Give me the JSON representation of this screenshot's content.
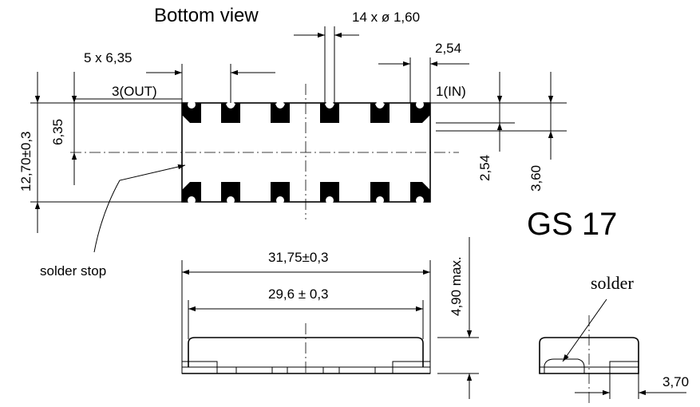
{
  "title": "Bottom view",
  "part_name": "GS 17",
  "labels": {
    "hole_note": "14 x ø 1,60",
    "pitch_count": "5 x 6,35",
    "pin_spacing": "2,54",
    "out_pin": "3(OUT)",
    "in_pin": "1(IN)",
    "height_total": "12,70±0,3",
    "height_half": "6,35",
    "pad_offset": "2,54",
    "pad_depth": "3,60",
    "solder_stop": "solder stop",
    "length_outer": "31,75±0,3",
    "length_inner": "29,6 ± 0,3",
    "max_height": "4,90 max.",
    "solder": "solder",
    "side_width": "3,70"
  },
  "colors": {
    "line": "#000000",
    "background": "#ffffff"
  }
}
